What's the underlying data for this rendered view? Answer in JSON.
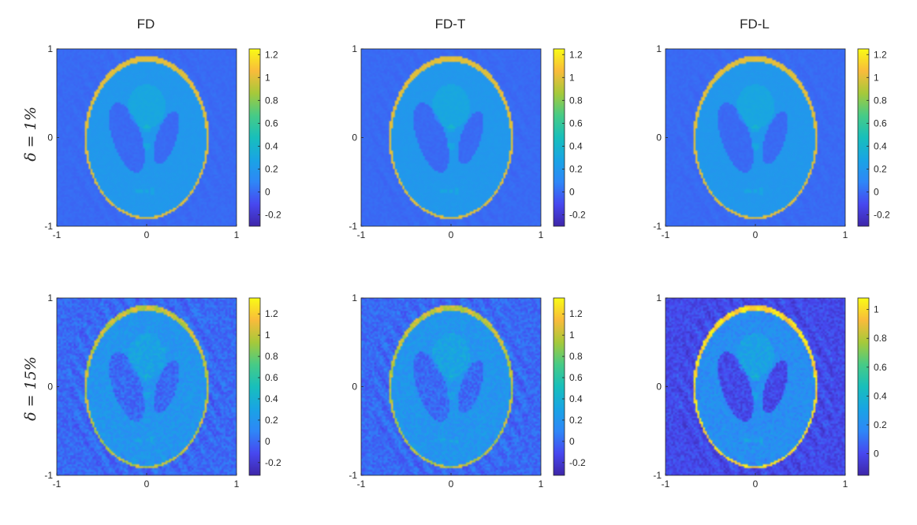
{
  "figure": {
    "column_titles": [
      "FD",
      "FD-T",
      "FD-L"
    ],
    "row_labels": [
      "δ = 1%",
      "δ = 15%"
    ]
  },
  "chart_data": [
    {
      "type": "heatmap",
      "title": "FD",
      "row_label": "δ = 1%",
      "xticks": [
        "-1",
        "0",
        "1"
      ],
      "yticks": [
        "1",
        "0",
        "-1"
      ],
      "xlim": [
        -1,
        1
      ],
      "ylim": [
        -1,
        1
      ],
      "clim": [
        -0.3,
        1.25
      ],
      "colorbar_ticks": [
        "1.2",
        "1",
        "0.8",
        "0.6",
        "0.4",
        "0.2",
        "0",
        "-0.2"
      ],
      "colorbar_tick_values": [
        1.2,
        1,
        0.8,
        0.6,
        0.4,
        0.2,
        0,
        -0.2
      ],
      "noise": 0.02,
      "colormap": "parula",
      "image": "Shepp-Logan phantom reconstruction"
    },
    {
      "type": "heatmap",
      "title": "FD-T",
      "row_label": "δ = 1%",
      "xticks": [
        "-1",
        "0",
        "1"
      ],
      "yticks": [
        "1",
        "0",
        "-1"
      ],
      "xlim": [
        -1,
        1
      ],
      "ylim": [
        -1,
        1
      ],
      "clim": [
        -0.3,
        1.25
      ],
      "colorbar_ticks": [
        "1.2",
        "1",
        "0.8",
        "0.6",
        "0.4",
        "0.2",
        "0",
        "-0.2"
      ],
      "colorbar_tick_values": [
        1.2,
        1,
        0.8,
        0.6,
        0.4,
        0.2,
        0,
        -0.2
      ],
      "noise": 0.02,
      "colormap": "parula",
      "image": "Shepp-Logan phantom reconstruction"
    },
    {
      "type": "heatmap",
      "title": "FD-L",
      "row_label": "δ = 1%",
      "xticks": [
        "-1",
        "0",
        "1"
      ],
      "yticks": [
        "1",
        "0",
        "-1"
      ],
      "xlim": [
        -1,
        1
      ],
      "ylim": [
        -1,
        1
      ],
      "clim": [
        -0.3,
        1.25
      ],
      "colorbar_ticks": [
        "1.2",
        "1",
        "0.8",
        "0.6",
        "0.4",
        "0.2",
        "0",
        "-0.2"
      ],
      "colorbar_tick_values": [
        1.2,
        1,
        0.8,
        0.6,
        0.4,
        0.2,
        0,
        -0.2
      ],
      "noise": 0.02,
      "colormap": "parula",
      "image": "Shepp-Logan phantom reconstruction"
    },
    {
      "type": "heatmap",
      "title": "",
      "row_label": "δ = 15%",
      "xticks": [
        "-1",
        "0",
        "1"
      ],
      "yticks": [
        "1",
        "0",
        "-1"
      ],
      "xlim": [
        -1,
        1
      ],
      "ylim": [
        -1,
        1
      ],
      "clim": [
        -0.32,
        1.35
      ],
      "colorbar_ticks": [
        "1.2",
        "1",
        "0.8",
        "0.6",
        "0.4",
        "0.2",
        "0",
        "-0.2"
      ],
      "colorbar_tick_values": [
        1.2,
        1,
        0.8,
        0.6,
        0.4,
        0.2,
        0,
        -0.2
      ],
      "noise": 0.09,
      "colormap": "parula",
      "image": "Shepp-Logan phantom reconstruction"
    },
    {
      "type": "heatmap",
      "title": "",
      "row_label": "δ = 15%",
      "xticks": [
        "-1",
        "0",
        "1"
      ],
      "yticks": [
        "1",
        "0",
        "-1"
      ],
      "xlim": [
        -1,
        1
      ],
      "ylim": [
        -1,
        1
      ],
      "clim": [
        -0.32,
        1.35
      ],
      "colorbar_ticks": [
        "1.2",
        "1",
        "0.8",
        "0.6",
        "0.4",
        "0.2",
        "0",
        "-0.2"
      ],
      "colorbar_tick_values": [
        1.2,
        1,
        0.8,
        0.6,
        0.4,
        0.2,
        0,
        -0.2
      ],
      "noise": 0.09,
      "colormap": "parula",
      "image": "Shepp-Logan phantom reconstruction"
    },
    {
      "type": "heatmap",
      "title": "",
      "row_label": "δ = 15%",
      "xticks": [
        "-1",
        "0",
        "1"
      ],
      "yticks": [
        "1",
        "0",
        "-1"
      ],
      "xlim": [
        -1,
        1
      ],
      "ylim": [
        -1,
        1
      ],
      "clim": [
        -0.15,
        1.08
      ],
      "colorbar_ticks": [
        "1",
        "0.8",
        "0.6",
        "0.4",
        "0.2",
        "0"
      ],
      "colorbar_tick_values": [
        1,
        0.8,
        0.6,
        0.4,
        0.2,
        0
      ],
      "noise": 0.07,
      "colormap": "parula",
      "image": "Shepp-Logan phantom reconstruction"
    }
  ]
}
